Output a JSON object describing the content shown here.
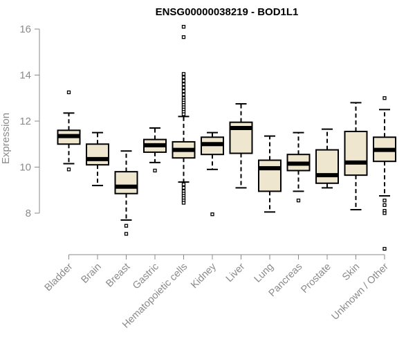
{
  "chart_data": {
    "type": "boxplot",
    "title": "ENSG00000038219 - BOD1L1",
    "xlabel": "",
    "ylabel": "Expression",
    "ylim": [
      6.2,
      16.3
    ],
    "yticks": [
      8,
      10,
      12,
      14,
      16
    ],
    "grid": false,
    "colors": {
      "box_fill": "#EFE6CF",
      "stroke": "#000000",
      "axis": "#8a8a8a"
    },
    "categories": [
      "Bladder",
      "Brain",
      "Breast",
      "Gastric",
      "Hematopoietic cells",
      "Kidney",
      "Liver",
      "Lung",
      "Pancreas",
      "Prostate",
      "Skin",
      "Unknown / Other"
    ],
    "boxes": [
      {
        "category": "Bladder",
        "whisker_low": 10.15,
        "q1": 11.0,
        "median": 11.35,
        "q3": 11.6,
        "whisker_high": 12.35,
        "outliers": [
          13.25,
          9.9
        ]
      },
      {
        "category": "Brain",
        "whisker_low": 9.2,
        "q1": 10.1,
        "median": 10.35,
        "q3": 11.0,
        "whisker_high": 11.5,
        "outliers": []
      },
      {
        "category": "Breast",
        "whisker_low": 7.7,
        "q1": 8.85,
        "median": 9.15,
        "q3": 9.8,
        "whisker_high": 10.7,
        "outliers": [
          7.45,
          7.1
        ]
      },
      {
        "category": "Gastric",
        "whisker_low": 10.2,
        "q1": 10.65,
        "median": 10.95,
        "q3": 11.2,
        "whisker_high": 11.7,
        "outliers": [
          9.85
        ]
      },
      {
        "category": "Hematopoietic cells",
        "whisker_low": 9.35,
        "q1": 10.4,
        "median": 10.75,
        "q3": 11.1,
        "whisker_high": 12.2,
        "outliers": [
          16.1,
          15.65,
          14.05,
          13.9,
          13.75,
          13.6,
          13.45,
          13.3,
          13.15,
          13.0,
          12.9,
          12.8,
          12.7,
          12.6,
          12.5,
          12.4,
          12.3,
          9.25,
          9.1,
          8.95,
          8.85,
          8.75,
          8.65,
          8.55,
          8.45
        ]
      },
      {
        "category": "Kidney",
        "whisker_low": 9.9,
        "q1": 10.55,
        "median": 11.0,
        "q3": 11.3,
        "whisker_high": 11.5,
        "outliers": [
          7.95
        ]
      },
      {
        "category": "Liver",
        "whisker_low": 9.1,
        "q1": 10.6,
        "median": 11.7,
        "q3": 11.95,
        "whisker_high": 12.75,
        "outliers": []
      },
      {
        "category": "Lung",
        "whisker_low": 8.05,
        "q1": 8.95,
        "median": 9.95,
        "q3": 10.3,
        "whisker_high": 11.35,
        "outliers": []
      },
      {
        "category": "Pancreas",
        "whisker_low": 8.95,
        "q1": 9.85,
        "median": 10.15,
        "q3": 10.55,
        "whisker_high": 11.5,
        "outliers": [
          8.55
        ]
      },
      {
        "category": "Prostate",
        "whisker_low": 9.1,
        "q1": 9.3,
        "median": 9.65,
        "q3": 10.75,
        "whisker_high": 11.65,
        "outliers": []
      },
      {
        "category": "Skin",
        "whisker_low": 8.15,
        "q1": 9.65,
        "median": 10.2,
        "q3": 11.55,
        "whisker_high": 12.8,
        "outliers": []
      },
      {
        "category": "Unknown / Other",
        "whisker_low": 8.75,
        "q1": 10.25,
        "median": 10.75,
        "q3": 11.3,
        "whisker_high": 12.5,
        "outliers": [
          13.0,
          8.55,
          8.35,
          8.1,
          8.0,
          6.45
        ]
      }
    ]
  }
}
